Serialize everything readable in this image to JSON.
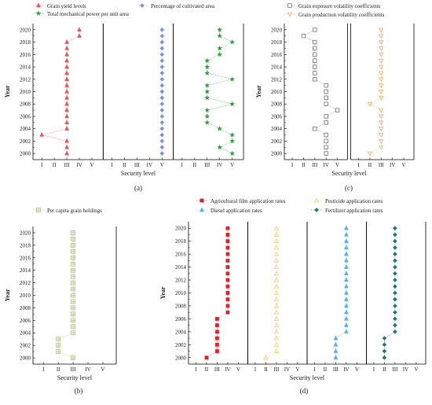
{
  "roman": [
    "I",
    "II",
    "III",
    "IV",
    "V"
  ],
  "colors": {
    "red": "#e8545a",
    "blue": "#7b8fe0",
    "green": "#2e9a3a",
    "gray": "#707070",
    "orange": "#f0b060",
    "olive": "#b8b87a",
    "darkred": "#e0202a",
    "yellow": "#e8d070",
    "cyan": "#4fb3e8",
    "teal": "#1a7a6a"
  },
  "chart_data": [
    {
      "panel": "(a)",
      "type": "scatter",
      "xlabel": "Security level",
      "ylabel": "Year",
      "yticks": [
        2000,
        2002,
        2004,
        2006,
        2008,
        2010,
        2012,
        2014,
        2016,
        2018,
        2020
      ],
      "xticks": [
        "I",
        "II",
        "III",
        "IV",
        "V"
      ],
      "x": [
        2000,
        2001,
        2002,
        2003,
        2004,
        2005,
        2006,
        2007,
        2008,
        2009,
        2010,
        2011,
        2012,
        2013,
        2014,
        2015,
        2016,
        2017,
        2018,
        2019,
        2020
      ],
      "legend_rows": [
        [
          "Grain yield levels",
          "Percentage of cultivated area"
        ],
        [
          "Total mechanical power per unit area"
        ]
      ],
      "series": [
        {
          "name": "Grain yield levels",
          "color_key": "red",
          "marker": "triangle",
          "subplot": 0,
          "values": [
            "III",
            "III",
            "III",
            "I",
            "III",
            "III",
            "III",
            "III",
            "III",
            "III",
            "III",
            "III",
            "III",
            "III",
            "III",
            "III",
            "III",
            "III",
            "III",
            "IV",
            "IV"
          ]
        },
        {
          "name": "Percentage of cultivated area",
          "color_key": "blue",
          "marker": "diamond",
          "subplot": 1,
          "values": [
            "V",
            "V",
            "V",
            "V",
            "V",
            "V",
            "V",
            "V",
            "V",
            "V",
            "V",
            "V",
            "V",
            "V",
            "V",
            "V",
            "V",
            "V",
            "V",
            "V",
            "V"
          ]
        },
        {
          "name": "Total mechanical power per unit area",
          "color_key": "green",
          "marker": "star",
          "subplot": 2,
          "values": [
            "V",
            "IV",
            "V",
            "V",
            "IV",
            "III",
            "III",
            "III",
            "V",
            "III",
            "III",
            "III",
            "V",
            "III",
            "III",
            "III",
            "IV",
            "IV",
            "V",
            "IV",
            "IV"
          ]
        }
      ]
    },
    {
      "panel": "(b)",
      "type": "scatter",
      "xlabel": "Security level",
      "ylabel": "Year",
      "yticks": [
        2000,
        2002,
        2004,
        2006,
        2008,
        2010,
        2012,
        2014,
        2016,
        2018,
        2020
      ],
      "xticks": [
        "I",
        "II",
        "III",
        "IV",
        "V"
      ],
      "x": [
        2000,
        2001,
        2002,
        2003,
        2004,
        2005,
        2006,
        2007,
        2008,
        2009,
        2010,
        2011,
        2012,
        2013,
        2014,
        2015,
        2016,
        2017,
        2018,
        2019,
        2020
      ],
      "legend_rows": [
        [
          "Per capita grain holdings"
        ]
      ],
      "series": [
        {
          "name": "Per capita grain holdings",
          "color_key": "olive",
          "marker": "square-plus",
          "subplot": 0,
          "values": [
            "III",
            "II",
            "II",
            "II",
            "III",
            "III",
            "III",
            "III",
            "III",
            "III",
            "III",
            "III",
            "III",
            "III",
            "III",
            "III",
            "III",
            "III",
            "III",
            "III",
            "III"
          ]
        }
      ]
    },
    {
      "panel": "(c)",
      "type": "scatter",
      "xlabel": "Security level",
      "ylabel": "Year",
      "yticks": [
        2000,
        2002,
        2004,
        2006,
        2008,
        2010,
        2012,
        2014,
        2016,
        2018,
        2020
      ],
      "xticks": [
        "I",
        "II",
        "III",
        "IV",
        "V"
      ],
      "x": [
        2000,
        2001,
        2002,
        2003,
        2004,
        2005,
        2006,
        2007,
        2008,
        2009,
        2010,
        2011,
        2012,
        2013,
        2014,
        2015,
        2016,
        2017,
        2018,
        2019,
        2020
      ],
      "legend_rows": [
        [
          "Grain exposure volatility coefficients"
        ],
        [
          "Grain production volatility coefficients"
        ]
      ],
      "series": [
        {
          "name": "Grain exposure volatility coefficients",
          "color_key": "gray",
          "marker": "square",
          "subplot": 0,
          "values": [
            "IV",
            "IV",
            "IV",
            "IV",
            "III",
            "IV",
            "IV",
            "V",
            "IV",
            "IV",
            "IV",
            "IV",
            "III",
            "III",
            "III",
            "III",
            "III",
            "III",
            "III",
            "II",
            "III"
          ]
        },
        {
          "name": "Grain production volatility coefficients",
          "color_key": "orange",
          "marker": "triangle-down",
          "subplot": 1,
          "values": [
            "II",
            "III",
            "III",
            "III",
            "III",
            "III",
            "III",
            "III",
            "II",
            "III",
            "III",
            "III",
            "III",
            "III",
            "III",
            "III",
            "III",
            "III",
            "III",
            "III",
            "III"
          ]
        }
      ]
    },
    {
      "panel": "(d)",
      "type": "scatter",
      "xlabel": "Security level",
      "ylabel": "Year",
      "yticks": [
        2000,
        2002,
        2004,
        2006,
        2008,
        2010,
        2012,
        2014,
        2016,
        2018,
        2020
      ],
      "xticks": [
        "I",
        "II",
        "III",
        "IV",
        "V"
      ],
      "x": [
        2000,
        2001,
        2002,
        2003,
        2004,
        2005,
        2006,
        2007,
        2008,
        2009,
        2010,
        2011,
        2012,
        2013,
        2014,
        2015,
        2016,
        2017,
        2018,
        2019,
        2020
      ],
      "legend_rows": [
        [
          "Agricultural film application rates",
          "Pesticide application rates"
        ],
        [
          "Diesel application rates",
          "Fertilizer application rates"
        ]
      ],
      "series": [
        {
          "name": "Agricultural film application rates",
          "color_key": "darkred",
          "marker": "square-filled",
          "subplot": 0,
          "values": [
            "II",
            "III",
            "III",
            "III",
            "III",
            "III",
            "III",
            "IV",
            "IV",
            "IV",
            "IV",
            "IV",
            "IV",
            "IV",
            "IV",
            "IV",
            "IV",
            "IV",
            "IV",
            "IV",
            "IV"
          ]
        },
        {
          "name": "Pesticide application rates",
          "color_key": "yellow",
          "marker": "triangle-open",
          "subplot": 1,
          "values": [
            "II",
            "III",
            "III",
            "III",
            "III",
            "III",
            "III",
            "III",
            "III",
            "III",
            "III",
            "III",
            "III",
            "III",
            "III",
            "III",
            "III",
            "III",
            "III",
            "III",
            "III"
          ]
        },
        {
          "name": "Diesel application rates",
          "color_key": "cyan",
          "marker": "triangle-filled",
          "subplot": 2,
          "values": [
            "III",
            "III",
            "III",
            "III",
            "IV",
            "IV",
            "IV",
            "IV",
            "IV",
            "IV",
            "IV",
            "IV",
            "IV",
            "IV",
            "IV",
            "IV",
            "IV",
            "IV",
            "IV",
            "IV",
            "IV"
          ]
        },
        {
          "name": "Fertilizer application rates",
          "color_key": "teal",
          "marker": "diamond-filled",
          "subplot": 3,
          "values": [
            "II",
            "II",
            "II",
            "II",
            "III",
            "III",
            "III",
            "III",
            "III",
            "III",
            "III",
            "III",
            "III",
            "III",
            "III",
            "III",
            "III",
            "III",
            "III",
            "III",
            "III"
          ]
        }
      ]
    }
  ]
}
